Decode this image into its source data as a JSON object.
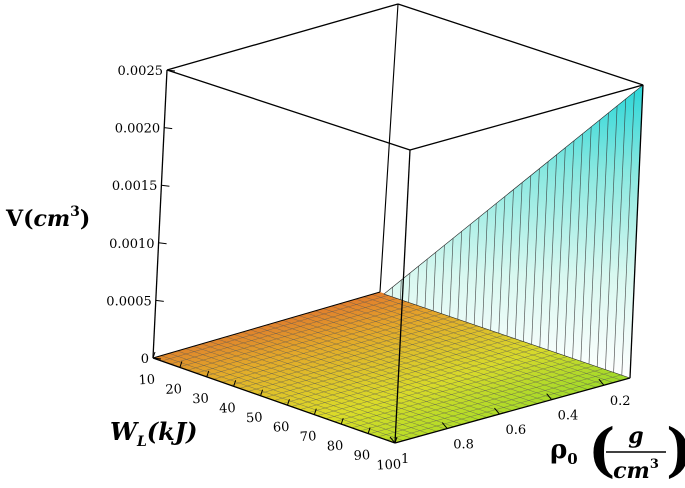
{
  "chart_data": {
    "type": "surface3d",
    "title": "",
    "zlabel": {
      "main": "V(",
      "unit": "cm",
      "sup": "3",
      "close": ")"
    },
    "xlabel": {
      "main": "W",
      "sub": "L",
      "unit": "(kJ)"
    },
    "ylabel": {
      "main": "ρ",
      "sub": "0",
      "num": "g",
      "den": "cm",
      "den_sup": "3"
    },
    "x_axis": {
      "name": "W_L",
      "unit": "kJ",
      "range": [
        10,
        100
      ],
      "ticks": [
        10,
        20,
        30,
        40,
        50,
        60,
        70,
        80,
        90,
        100
      ]
    },
    "y_axis": {
      "name": "rho_0",
      "unit": "g/cm^3",
      "range": [
        0.1,
        1.0
      ],
      "ticks": [
        "0.2",
        "0.4",
        "0.6",
        "0.8",
        "1"
      ]
    },
    "z_axis": {
      "name": "V",
      "unit": "cm^3",
      "range": [
        0,
        0.0025
      ],
      "ticks": [
        "0",
        "0.0005",
        "0.0010",
        "0.0015",
        "0.0020",
        "0.0025"
      ]
    },
    "surface": {
      "description": "V rises only at the smallest rho_0 and largest W_L; elsewhere ~0",
      "samples": [
        {
          "W_L": 100,
          "rho_0": 0.1,
          "V": 0.0025
        },
        {
          "W_L": 10,
          "rho_0": 0.1,
          "V": 0.00025
        },
        {
          "W_L": 100,
          "rho_0": 0.2,
          "V": 0.0
        },
        {
          "W_L": 10,
          "rho_0": 1.0,
          "V": 0.0
        },
        {
          "W_L": 100,
          "rho_0": 1.0,
          "V": 0.0
        }
      ]
    },
    "colormap": "rainbow-by-height",
    "box": true,
    "grid": true
  }
}
